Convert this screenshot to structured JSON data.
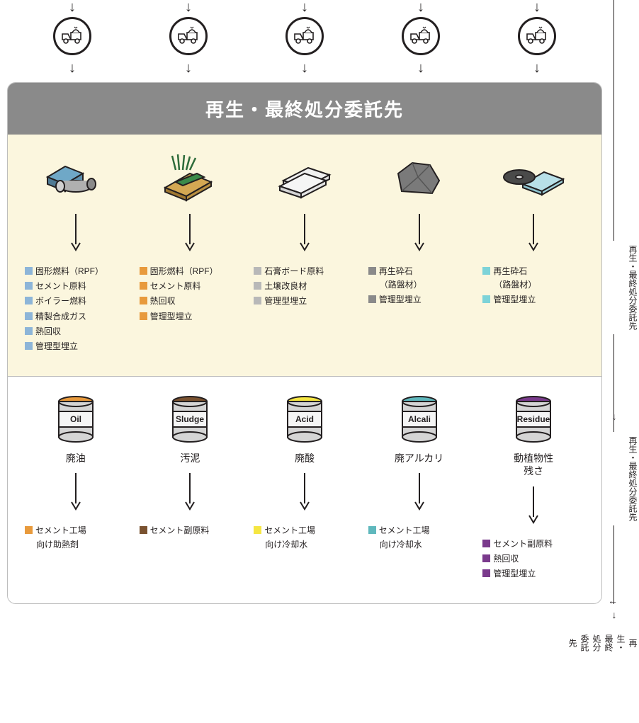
{
  "header": {
    "title": "再生・最終処分委託先"
  },
  "colors": {
    "blue": "#8db5d8",
    "orange": "#e89a3c",
    "gray": "#b8b8b8",
    "darkgray": "#8a8a8a",
    "cyan": "#7dd3d8",
    "brown": "#7a5230",
    "yellow": "#f5e642",
    "teal": "#5fb8bd",
    "purple": "#7a3a8c",
    "bg_upper": "#fbf6de",
    "bg_lower": "#ffffff",
    "stroke": "#231f20"
  },
  "truck_count": 5,
  "upper": [
    {
      "icon": "paper-roll",
      "items": [
        {
          "c": "blue",
          "t": "固形燃料（RPF）"
        },
        {
          "c": "blue",
          "t": "セメント原料"
        },
        {
          "c": "blue",
          "t": "ボイラー燃料"
        },
        {
          "c": "blue",
          "t": "精製合成ガス"
        },
        {
          "c": "blue",
          "t": "熱回収"
        },
        {
          "c": "blue",
          "t": "管理型埋立"
        }
      ]
    },
    {
      "icon": "wood-grass",
      "items": [
        {
          "c": "orange",
          "t": "固形燃料（RPF）"
        },
        {
          "c": "orange",
          "t": "セメント原料"
        },
        {
          "c": "orange",
          "t": "熱回収"
        },
        {
          "c": "orange",
          "t": "管理型埋立"
        }
      ]
    },
    {
      "icon": "boards",
      "items": [
        {
          "c": "gray",
          "t": "石膏ボード原料"
        },
        {
          "c": "gray",
          "t": "土壌改良材"
        },
        {
          "c": "gray",
          "t": "管理型埋立"
        }
      ]
    },
    {
      "icon": "rock",
      "items": [
        {
          "c": "darkgray",
          "t": "再生砕石"
        },
        {
          "c": "darkgray",
          "t": "（路盤材）",
          "indent": true
        },
        {
          "c": "darkgray",
          "t": "管理型埋立"
        }
      ]
    },
    {
      "icon": "glass-disc",
      "items": [
        {
          "c": "cyan",
          "t": "再生砕石"
        },
        {
          "c": "cyan",
          "t": "（路盤材）",
          "indent": true
        },
        {
          "c": "cyan",
          "t": "管理型埋立"
        }
      ]
    }
  ],
  "lower": [
    {
      "can_color": "#e89a3c",
      "can_label": "Oil",
      "jp": "廃油",
      "items": [
        {
          "c": "orange",
          "t": "セメント工場"
        },
        {
          "c": "orange",
          "t": "向け助熱剤",
          "indent": true
        }
      ]
    },
    {
      "can_color": "#7a5230",
      "can_label": "Sludge",
      "jp": "汚泥",
      "items": [
        {
          "c": "brown",
          "t": "セメント副原料"
        }
      ]
    },
    {
      "can_color": "#f5e642",
      "can_label": "Acid",
      "jp": "廃酸",
      "items": [
        {
          "c": "yellow",
          "t": "セメント工場"
        },
        {
          "c": "yellow",
          "t": "向け冷却水",
          "indent": true
        }
      ]
    },
    {
      "can_color": "#5fb8bd",
      "can_label": "Alcali",
      "jp": "廃アルカリ",
      "items": [
        {
          "c": "teal",
          "t": "セメント工場"
        },
        {
          "c": "teal",
          "t": "向け冷却水",
          "indent": true
        }
      ]
    },
    {
      "can_color": "#7a3a8c",
      "can_label": "Residue",
      "jp": "動植物性\n残さ",
      "items": [
        {
          "c": "purple",
          "t": "セメント副原料"
        },
        {
          "c": "purple",
          "t": "熱回収"
        },
        {
          "c": "purple",
          "t": "管理型埋立"
        }
      ]
    }
  ],
  "side": {
    "label": "再生・最終処分委託先"
  }
}
